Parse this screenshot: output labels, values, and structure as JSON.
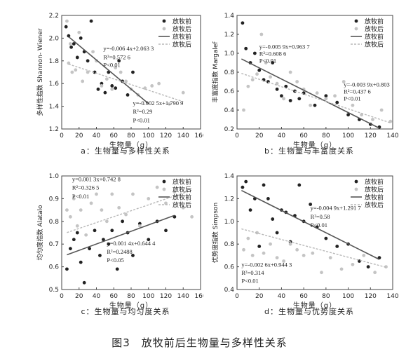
{
  "figure_caption": "图3　放牧前后生物量与多样性关系",
  "chart_data": [
    {
      "type": "scatter",
      "caption": "a：生物量与多样性关系",
      "xlabel": "生物量（g）",
      "ylabel": "多样性指数 Shannon- Wiener",
      "xlim": [
        0,
        160
      ],
      "ylim": [
        1.2,
        2.2
      ],
      "xticks": [
        "0",
        "20",
        "40",
        "60",
        "80",
        "100",
        "120",
        "140",
        "160"
      ],
      "yticks": [
        "1.2",
        "1.4",
        "1.6",
        "1.8",
        "2.0",
        "2.2"
      ],
      "legend": [
        "放牧前",
        "放牧后",
        "放牧前",
        "放牧后"
      ],
      "series": [
        {
          "name": "放牧前",
          "marker": "black-dot",
          "x": [
            5,
            8,
            11,
            14,
            18,
            22,
            26,
            30,
            34,
            38,
            42,
            46,
            50,
            54,
            58,
            62,
            66,
            70,
            76,
            82
          ],
          "y": [
            2.1,
            2.02,
            1.92,
            1.95,
            1.83,
            2.0,
            1.88,
            1.8,
            2.15,
            1.7,
            1.55,
            1.6,
            1.52,
            1.7,
            1.58,
            1.56,
            1.8,
            1.62,
            1.5,
            1.7
          ]
        },
        {
          "name": "放牧后",
          "marker": "gray-dot",
          "x": [
            6,
            8,
            10,
            12,
            16,
            20,
            24,
            30,
            36,
            40,
            46,
            52,
            58,
            62,
            68,
            74,
            80,
            88,
            96,
            104,
            112,
            124,
            140
          ],
          "y": [
            2.15,
            1.78,
            1.95,
            1.7,
            1.72,
            2.05,
            1.62,
            1.7,
            1.88,
            1.8,
            1.58,
            1.64,
            1.55,
            1.74,
            1.7,
            1.62,
            1.55,
            1.5,
            1.56,
            1.58,
            1.6,
            1.42,
            1.52
          ]
        }
      ],
      "fits": [
        {
          "name": "放牧前",
          "style": "solid",
          "slope": -0.0064,
          "intercept": 2.0633,
          "x_range": [
            8,
            100
          ]
        },
        {
          "name": "放牧后",
          "style": "dashed",
          "slope": -0.0025,
          "intercept": 1.7909,
          "x_range": [
            8,
            140
          ]
        }
      ],
      "annotations": [
        {
          "text": "y=-0.006 4x+2.063 3",
          "ax": 48,
          "ay": 1.89
        },
        {
          "text": "R²=0.572 6",
          "ax": 48,
          "ay": 1.815
        },
        {
          "text": "P<0.01",
          "ax": 48,
          "ay": 1.745
        },
        {
          "text": "y=-0.002 5x+1.790 9",
          "ax": 82,
          "ay": 1.41
        },
        {
          "text": "R²=0.29",
          "ax": 82,
          "ay": 1.335
        },
        {
          "text": "P<0.01",
          "ax": 82,
          "ay": 1.26
        }
      ]
    },
    {
      "type": "scatter",
      "caption": "b：生物量与丰富度关系",
      "xlabel": "生物量（g）",
      "ylabel": "丰富度指数 Margalef",
      "xlim": [
        0,
        140
      ],
      "ylim": [
        0.2,
        1.4
      ],
      "xticks": [
        "0",
        "20",
        "40",
        "60",
        "80",
        "100",
        "120",
        "140"
      ],
      "yticks": [
        "0.2",
        "0.4",
        "0.6",
        "0.8",
        "1.0",
        "1.2",
        "1.4"
      ],
      "legend": [
        "放牧前",
        "放牧后",
        "放牧前",
        "放牧后"
      ],
      "series": [
        {
          "name": "放牧前",
          "marker": "black-dot",
          "x": [
            5,
            8,
            12,
            16,
            20,
            24,
            28,
            32,
            36,
            40,
            44,
            48,
            52,
            56,
            60,
            70,
            80,
            90,
            100,
            110,
            120,
            128
          ],
          "y": [
            1.32,
            1.05,
            0.9,
            1.0,
            0.82,
            0.72,
            0.7,
            0.9,
            0.62,
            0.55,
            0.65,
            0.5,
            0.6,
            0.52,
            0.58,
            0.45,
            0.55,
            0.48,
            0.35,
            0.3,
            0.25,
            0.22
          ]
        },
        {
          "name": "放牧后",
          "marker": "gray-dot",
          "x": [
            6,
            10,
            14,
            18,
            22,
            26,
            30,
            36,
            42,
            48,
            54,
            60,
            66,
            72,
            80,
            88,
            96,
            104,
            112,
            122,
            130,
            138
          ],
          "y": [
            0.4,
            0.65,
            0.72,
            0.78,
            1.2,
            0.9,
            0.75,
            0.68,
            0.52,
            0.8,
            0.7,
            0.62,
            0.45,
            0.58,
            0.52,
            0.55,
            0.7,
            0.45,
            0.35,
            0.3,
            0.4,
            0.28
          ]
        }
      ],
      "fits": [
        {
          "name": "放牧前",
          "style": "solid",
          "slope": -0.0059,
          "intercept": 0.9637,
          "x_range": [
            4,
            128
          ]
        },
        {
          "name": "放牧后",
          "style": "dashed",
          "slope": -0.0039,
          "intercept": 0.803,
          "x_range": [
            4,
            138
          ]
        }
      ],
      "annotations": [
        {
          "text": "y=-0.005 9x+0.963 7",
          "ax": 20,
          "ay": 1.05
        },
        {
          "text": "R²=0.608 6",
          "ax": 20,
          "ay": 0.975
        },
        {
          "text": "P<0.01",
          "ax": 20,
          "ay": 0.9
        },
        {
          "text": "y=-0.003 9x+0.803",
          "ax": 96,
          "ay": 0.65
        },
        {
          "text": "R²=0.437 6",
          "ax": 96,
          "ay": 0.575
        },
        {
          "text": "P<0.01",
          "ax": 96,
          "ay": 0.5
        }
      ]
    },
    {
      "type": "scatter",
      "caption": "c：生物量与均匀度关系",
      "xlabel": "生物量（g）",
      "ylabel": "均匀度指数 Alatalo",
      "xlim": [
        0,
        160
      ],
      "ylim": [
        0.5,
        1.0
      ],
      "xticks": [
        "0",
        "20",
        "40",
        "60",
        "80",
        "100",
        "120",
        "140",
        "160"
      ],
      "yticks": [
        "0.5",
        "0.6",
        "0.7",
        "0.8",
        "0.9",
        "1.0"
      ],
      "legend": [
        "放牧前",
        "放牧后",
        "放牧前",
        "放牧后"
      ],
      "series": [
        {
          "name": "放牧前",
          "marker": "black-dot",
          "x": [
            6,
            10,
            14,
            18,
            22,
            26,
            32,
            38,
            44,
            48,
            54,
            58,
            64,
            70,
            76,
            82,
            90,
            100,
            110,
            120,
            130
          ],
          "y": [
            0.59,
            0.68,
            0.72,
            0.75,
            0.62,
            0.53,
            0.68,
            0.76,
            0.65,
            0.72,
            0.7,
            0.76,
            0.59,
            0.8,
            0.75,
            0.65,
            0.79,
            0.72,
            0.8,
            0.76,
            0.82
          ]
        },
        {
          "name": "放牧后",
          "marker": "gray-dot",
          "x": [
            6,
            10,
            14,
            18,
            22,
            28,
            34,
            40,
            46,
            52,
            58,
            66,
            74,
            82,
            90,
            100,
            110,
            120,
            130,
            140,
            150
          ],
          "y": [
            0.85,
            0.82,
            0.9,
            0.78,
            0.85,
            0.74,
            0.88,
            0.92,
            0.85,
            0.8,
            0.92,
            0.86,
            0.83,
            0.92,
            0.78,
            0.9,
            0.95,
            0.88,
            0.93,
            0.86,
            0.82
          ]
        }
      ],
      "fits": [
        {
          "name": "放牧前",
          "style": "solid",
          "slope": 0.0014,
          "intercept": 0.6444,
          "x_range": [
            6,
            130
          ]
        },
        {
          "name": "放牧后",
          "style": "dashed",
          "slope": 0.0013,
          "intercept": 0.7428,
          "x_range": [
            6,
            150
          ]
        }
      ],
      "annotations": [
        {
          "text": "y=0.001 3x+0.742 8",
          "ax": 12,
          "ay": 0.977
        },
        {
          "text": "R²=0.326 5",
          "ax": 12,
          "ay": 0.94
        },
        {
          "text": "P<0.01",
          "ax": 12,
          "ay": 0.902
        },
        {
          "text": "y=0.001 4x+0.644 4",
          "ax": 52,
          "ay": 0.695
        },
        {
          "text": "R²=0.2488",
          "ax": 52,
          "ay": 0.657
        },
        {
          "text": "P<0.05",
          "ax": 52,
          "ay": 0.62
        }
      ]
    },
    {
      "type": "scatter",
      "caption": "d：生物量与优势度关系",
      "xlabel": "生物量（g）",
      "ylabel": "优势度指数 Simpson",
      "xlim": [
        0,
        140
      ],
      "ylim": [
        0.4,
        1.4
      ],
      "xticks": [
        "0",
        "20",
        "40",
        "60",
        "80",
        "100",
        "120",
        "140"
      ],
      "yticks": [
        "0.4",
        "0.6",
        "0.8",
        "1.0",
        "1.2",
        "1.4"
      ],
      "legend": [
        "放牧前",
        "放牧后",
        "放牧前",
        "放牧后"
      ],
      "series": [
        {
          "name": "放牧前",
          "marker": "black-dot",
          "x": [
            5,
            8,
            12,
            16,
            20,
            24,
            28,
            32,
            36,
            40,
            44,
            48,
            52,
            56,
            60,
            66,
            72,
            80,
            90,
            100,
            110,
            118,
            128
          ],
          "y": [
            1.3,
            1.35,
            1.1,
            1.2,
            0.78,
            1.32,
            1.2,
            1.02,
            0.9,
            1.1,
            1.08,
            0.82,
            1.05,
            1.32,
            1.0,
            1.15,
            0.95,
            0.85,
            0.78,
            0.8,
            0.65,
            0.6,
            0.68
          ]
        },
        {
          "name": "放牧后",
          "marker": "gray-dot",
          "x": [
            6,
            10,
            14,
            18,
            24,
            30,
            36,
            42,
            48,
            54,
            60,
            68,
            76,
            84,
            94,
            104,
            114,
            124,
            134
          ],
          "y": [
            0.75,
            0.85,
            0.7,
            0.9,
            0.72,
            0.8,
            0.68,
            0.65,
            0.8,
            0.75,
            0.7,
            0.72,
            0.55,
            0.68,
            0.58,
            0.62,
            0.7,
            0.55,
            0.6
          ]
        }
      ],
      "fits": [
        {
          "name": "放牧前",
          "style": "solid",
          "slope": -0.0049,
          "intercept": 1.2917,
          "x_range": [
            4,
            128
          ]
        },
        {
          "name": "放牧后",
          "style": "dashed",
          "slope": -0.0026,
          "intercept": 0.9443,
          "x_range": [
            4,
            134
          ]
        }
      ],
      "annotations": [
        {
          "text": "y=-0.004 9x+1.291 7",
          "ax": 66,
          "ay": 1.1
        },
        {
          "text": "R²=0.58",
          "ax": 66,
          "ay": 1.025
        },
        {
          "text": "P<0.01",
          "ax": 66,
          "ay": 0.95
        },
        {
          "text": "y=-0.002 6x+0.944 3",
          "ax": 4,
          "ay": 0.6
        },
        {
          "text": "R²=0.314",
          "ax": 4,
          "ay": 0.53
        },
        {
          "text": "P<0.01",
          "ax": 4,
          "ay": 0.46
        }
      ]
    }
  ]
}
